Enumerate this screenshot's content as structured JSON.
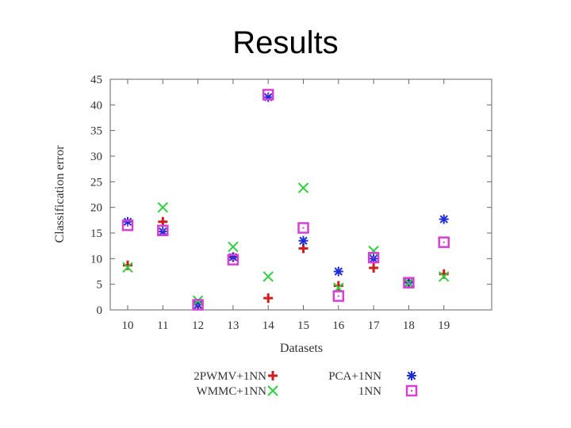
{
  "slide": {
    "title": "Results"
  },
  "chart_data": {
    "type": "scatter",
    "title": "",
    "xlabel": "Datasets",
    "ylabel": "Classification error",
    "categories": [
      "10",
      "11",
      "12",
      "13",
      "14",
      "15",
      "16",
      "17",
      "18",
      "19"
    ],
    "x_ticks": [
      "10",
      "11",
      "12",
      "13",
      "14",
      "15",
      "16",
      "17",
      "18",
      "19"
    ],
    "y_ticks": [
      "0",
      "5",
      "10",
      "15",
      "20",
      "25",
      "30",
      "35",
      "40",
      "45"
    ],
    "ylim": [
      0,
      45
    ],
    "grid": false,
    "legend_position": "bottom",
    "series": [
      {
        "name": "2PWMV+1NN",
        "marker": "plus",
        "color": "#cc1f1f",
        "values": [
          8.7,
          17.2,
          1.2,
          10.3,
          2.3,
          12.0,
          4.7,
          8.2,
          5.5,
          7.0
        ]
      },
      {
        "name": "PCA+1NN",
        "marker": "asterisk",
        "color": "#1f2fd6",
        "values": [
          17.2,
          15.3,
          1.0,
          10.3,
          41.5,
          13.5,
          7.5,
          10.0,
          5.3,
          17.7
        ]
      },
      {
        "name": "WMMC+1NN",
        "marker": "cross",
        "color": "#2fcf3f",
        "values": [
          8.3,
          20.0,
          1.8,
          12.3,
          6.5,
          23.8,
          4.3,
          11.5,
          5.2,
          6.5
        ]
      },
      {
        "name": "1NN",
        "marker": "square",
        "color": "#d63fd6",
        "values": [
          16.5,
          15.5,
          1.0,
          9.8,
          42.0,
          16.0,
          2.7,
          10.2,
          5.3,
          13.2
        ]
      }
    ]
  }
}
